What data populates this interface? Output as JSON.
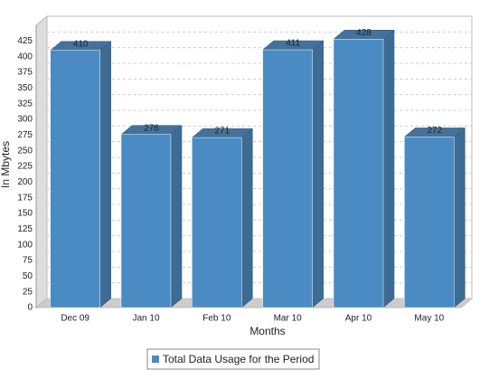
{
  "chart_data": {
    "type": "bar3d",
    "categories": [
      "Dec 09",
      "Jan 10",
      "Feb 10",
      "Mar 10",
      "Apr 10",
      "May 10"
    ],
    "series": [
      {
        "name": "Total Data Usage for the Period",
        "color": "#4a8bc3",
        "values": [
          410,
          276,
          271,
          411,
          428,
          272
        ]
      }
    ],
    "x_label": "Months",
    "y_label": "In Mbytes",
    "ylim": [
      0,
      450
    ],
    "yticks": [
      0,
      25,
      50,
      75,
      100,
      125,
      150,
      175,
      200,
      225,
      250,
      275,
      300,
      325,
      350,
      375,
      400,
      425
    ],
    "grid": true
  }
}
